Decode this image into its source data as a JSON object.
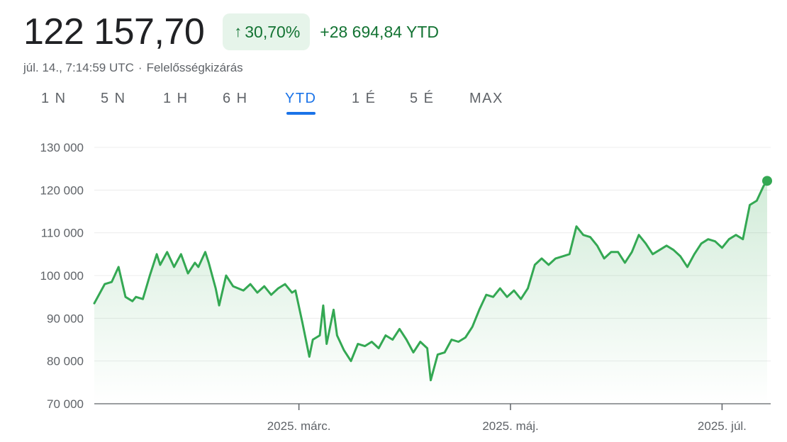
{
  "quote": {
    "price": "122 157,70",
    "change_pct": "30,70%",
    "change_abs": "+28 694,84 YTD",
    "timestamp": "júl. 14., 7:14:59 UTC",
    "separator": "·",
    "disclaimer": "Felelősségkizárás"
  },
  "icons": {
    "change_arrow": "arrow-up-icon"
  },
  "tabs": [
    {
      "label": "1 N",
      "active": false
    },
    {
      "label": "5 N",
      "active": false
    },
    {
      "label": "1 H",
      "active": false
    },
    {
      "label": "6 H",
      "active": false
    },
    {
      "label": "YTD",
      "active": true
    },
    {
      "label": "1 É",
      "active": false
    },
    {
      "label": "5 É",
      "active": false
    },
    {
      "label": "MAX",
      "active": false
    }
  ],
  "colors": {
    "line": "#34a853",
    "positive_text": "#137333",
    "badge_bg": "#e6f4ea",
    "tab_active": "#1a73e8",
    "grid": "#ececec",
    "axis_text": "#5f6368"
  },
  "chart_data": {
    "type": "area",
    "ylim": [
      70000,
      130000
    ],
    "y_ticks": [
      130000,
      120000,
      110000,
      100000,
      90000,
      80000,
      70000
    ],
    "y_tick_labels": [
      "130 000",
      "120 000",
      "110 000",
      "100 000",
      "90 000",
      "80 000",
      "70 000"
    ],
    "x_range": [
      "2025-01-01",
      "2025-07-14"
    ],
    "x_ticks": [
      {
        "date": "2025-03-01",
        "label": "2025. márc."
      },
      {
        "date": "2025-05-01",
        "label": "2025. máj."
      },
      {
        "date": "2025-07-01",
        "label": "2025. júl."
      }
    ],
    "grid": true,
    "series": [
      {
        "x": [
          "2025-01-01",
          "2025-01-04",
          "2025-01-06",
          "2025-01-08",
          "2025-01-10",
          "2025-01-12",
          "2025-01-13",
          "2025-01-15",
          "2025-01-17",
          "2025-01-19",
          "2025-01-20",
          "2025-01-22",
          "2025-01-24",
          "2025-01-26",
          "2025-01-28",
          "2025-01-30",
          "2025-01-31",
          "2025-02-02",
          "2025-02-03",
          "2025-02-05",
          "2025-02-06",
          "2025-02-08",
          "2025-02-10",
          "2025-02-13",
          "2025-02-15",
          "2025-02-17",
          "2025-02-19",
          "2025-02-21",
          "2025-02-23",
          "2025-02-25",
          "2025-02-27",
          "2025-02-28",
          "2025-03-02",
          "2025-03-04",
          "2025-03-05",
          "2025-03-07",
          "2025-03-08",
          "2025-03-09",
          "2025-03-11",
          "2025-03-12",
          "2025-03-14",
          "2025-03-16",
          "2025-03-18",
          "2025-03-20",
          "2025-03-22",
          "2025-03-24",
          "2025-03-26",
          "2025-03-28",
          "2025-03-30",
          "2025-04-01",
          "2025-04-03",
          "2025-04-05",
          "2025-04-07",
          "2025-04-08",
          "2025-04-10",
          "2025-04-12",
          "2025-04-14",
          "2025-04-16",
          "2025-04-18",
          "2025-04-20",
          "2025-04-22",
          "2025-04-24",
          "2025-04-26",
          "2025-04-28",
          "2025-04-30",
          "2025-05-02",
          "2025-05-04",
          "2025-05-06",
          "2025-05-08",
          "2025-05-10",
          "2025-05-12",
          "2025-05-14",
          "2025-05-16",
          "2025-05-18",
          "2025-05-20",
          "2025-05-22",
          "2025-05-24",
          "2025-05-26",
          "2025-05-28",
          "2025-05-30",
          "2025-06-01",
          "2025-06-03",
          "2025-06-05",
          "2025-06-07",
          "2025-06-09",
          "2025-06-11",
          "2025-06-13",
          "2025-06-15",
          "2025-06-17",
          "2025-06-19",
          "2025-06-21",
          "2025-06-23",
          "2025-06-25",
          "2025-06-27",
          "2025-06-29",
          "2025-07-01",
          "2025-07-03",
          "2025-07-05",
          "2025-07-07",
          "2025-07-09",
          "2025-07-11",
          "2025-07-13",
          "2025-07-14"
        ],
        "values": [
          93500,
          98000,
          98500,
          102000,
          95000,
          94000,
          95000,
          94500,
          100000,
          105000,
          102500,
          105500,
          102000,
          105000,
          100500,
          103000,
          102000,
          105500,
          103000,
          97000,
          93000,
          100000,
          97500,
          96500,
          98000,
          96000,
          97500,
          95500,
          97000,
          98000,
          96000,
          96500,
          89000,
          81000,
          85000,
          86000,
          93000,
          84000,
          92000,
          86000,
          82500,
          80000,
          84000,
          83500,
          84500,
          83000,
          86000,
          85000,
          87500,
          85000,
          82000,
          84500,
          83000,
          75500,
          81500,
          82000,
          85000,
          84500,
          85500,
          88000,
          92000,
          95500,
          95000,
          97000,
          95000,
          96500,
          94500,
          97000,
          102500,
          104000,
          102500,
          104000,
          104500,
          105000,
          111500,
          109500,
          109000,
          107000,
          104000,
          105500,
          105500,
          103000,
          105500,
          109500,
          107500,
          105000,
          106000,
          107000,
          106000,
          104500,
          102000,
          105000,
          107500,
          108500,
          108000,
          106500,
          108500,
          109500,
          108500,
          116500,
          117500,
          121000,
          122157.7
        ]
      }
    ],
    "last_point": {
      "date": "2025-07-14",
      "value": 122157.7
    }
  }
}
